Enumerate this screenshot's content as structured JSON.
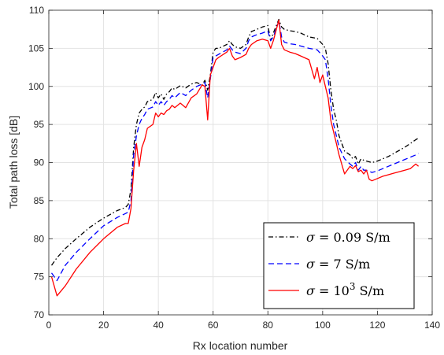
{
  "chart_data": {
    "type": "line",
    "xlabel": "Rx location number",
    "ylabel": "Total path loss [dB]",
    "xlim": [
      0,
      140
    ],
    "ylim": [
      70,
      110
    ],
    "x_ticks": [
      "0",
      "20",
      "40",
      "60",
      "80",
      "100",
      "120",
      "140"
    ],
    "y_ticks": [
      "70",
      "75",
      "80",
      "85",
      "90",
      "95",
      "100",
      "105",
      "110"
    ],
    "grid": true,
    "legend_position": "bottom-right",
    "series": [
      {
        "name": "σ = 0.09 S/m",
        "legend_symbol": "σ",
        "legend_text": " = 0.09 S/m",
        "color": "#000000",
        "style": "dashdot",
        "x": [
          1,
          3,
          6,
          10,
          15,
          20,
          25,
          28,
          29,
          30,
          31,
          32,
          33,
          34,
          35,
          36,
          38,
          39,
          40,
          41,
          42,
          43,
          44,
          45,
          46,
          48,
          50,
          52,
          54,
          56,
          57,
          58,
          59,
          60,
          61,
          62,
          65,
          66,
          67,
          68,
          70,
          72,
          73,
          74,
          76,
          78,
          80,
          81,
          82,
          84,
          85,
          86,
          88,
          90,
          92,
          95,
          98,
          100,
          101,
          102,
          103,
          104,
          105,
          106,
          108,
          110,
          111,
          112,
          113,
          114,
          115,
          116,
          118,
          120,
          122,
          124,
          126,
          128,
          130,
          132,
          134,
          135
        ],
        "values": [
          76.5,
          77.5,
          78.7,
          80.0,
          81.5,
          82.7,
          83.7,
          84.1,
          84.5,
          86.5,
          92.0,
          95.0,
          96.5,
          97.0,
          97.3,
          98.0,
          98.3,
          99.2,
          98.5,
          99.0,
          98.3,
          99.0,
          99.3,
          99.8,
          99.6,
          100.1,
          99.8,
          100.3,
          100.5,
          100.2,
          100.8,
          99.5,
          101.5,
          104.5,
          105.0,
          105.0,
          105.5,
          106.0,
          105.5,
          105.2,
          105.0,
          105.5,
          106.5,
          107.2,
          107.5,
          107.8,
          108.0,
          106.0,
          107.0,
          108.8,
          107.8,
          107.5,
          107.3,
          107.2,
          107.0,
          106.5,
          106.3,
          105.5,
          105.0,
          103.0,
          99.5,
          97.0,
          95.5,
          93.5,
          91.5,
          91.0,
          90.5,
          90.8,
          89.8,
          90.5,
          90.3,
          90.2,
          90.0,
          90.2,
          90.5,
          90.8,
          91.2,
          91.6,
          92.0,
          92.5,
          93.0,
          93.2
        ]
      },
      {
        "name": "σ = 7 S/m",
        "legend_symbol": "σ",
        "legend_text": " = 7 S/m",
        "color": "#0000ff",
        "style": "dashed",
        "x": [
          1,
          3,
          6,
          10,
          15,
          20,
          25,
          28,
          29,
          30,
          31,
          32,
          33,
          34,
          35,
          36,
          38,
          39,
          40,
          41,
          42,
          43,
          44,
          45,
          46,
          48,
          50,
          52,
          54,
          56,
          57,
          58,
          59,
          60,
          61,
          62,
          65,
          66,
          67,
          68,
          70,
          72,
          73,
          74,
          76,
          78,
          80,
          81,
          82,
          84,
          85,
          86,
          88,
          90,
          92,
          95,
          98,
          100,
          101,
          102,
          103,
          104,
          105,
          106,
          108,
          110,
          111,
          112,
          113,
          114,
          115,
          116,
          118,
          120,
          122,
          124,
          126,
          128,
          130,
          132,
          134,
          135
        ],
        "values": [
          75.5,
          74.5,
          76.5,
          78.2,
          80.0,
          81.7,
          82.8,
          83.3,
          83.5,
          85.0,
          91.0,
          93.5,
          95.0,
          95.8,
          96.3,
          97.0,
          97.3,
          98.0,
          97.5,
          98.0,
          97.5,
          98.0,
          98.3,
          98.8,
          98.5,
          99.2,
          98.8,
          99.5,
          100.0,
          100.3,
          100.5,
          98.5,
          101.0,
          103.8,
          104.0,
          104.2,
          104.8,
          105.3,
          104.8,
          104.5,
          104.3,
          105.0,
          106.0,
          106.5,
          106.8,
          107.0,
          107.3,
          106.0,
          106.5,
          108.6,
          106.5,
          105.8,
          105.6,
          105.5,
          105.3,
          105.0,
          104.8,
          104.0,
          103.5,
          101.0,
          97.5,
          95.0,
          93.5,
          92.0,
          90.5,
          89.8,
          89.5,
          90.0,
          89.0,
          89.5,
          89.0,
          89.0,
          88.7,
          88.9,
          89.2,
          89.5,
          89.8,
          90.1,
          90.4,
          90.7,
          91.0,
          91.2
        ]
      },
      {
        "name": "σ = 10³ S/m",
        "legend_symbol": "σ",
        "legend_text": " = 10",
        "legend_superscript": "3",
        "legend_suffix": " S/m",
        "color": "#ff0000",
        "style": "solid",
        "x": [
          1,
          3,
          6,
          10,
          15,
          20,
          25,
          28,
          29,
          30,
          31,
          32,
          33,
          34,
          35,
          36,
          38,
          39,
          40,
          41,
          42,
          43,
          44,
          45,
          46,
          48,
          50,
          52,
          54,
          56,
          57,
          58,
          59,
          60,
          61,
          62,
          65,
          66,
          67,
          68,
          70,
          72,
          73,
          74,
          76,
          78,
          80,
          81,
          82,
          84,
          85,
          86,
          88,
          90,
          92,
          95,
          97,
          98,
          99,
          100,
          101,
          102,
          103,
          104,
          105,
          106,
          108,
          110,
          111,
          112,
          113,
          114,
          115,
          116,
          117,
          118,
          120,
          122,
          124,
          126,
          128,
          130,
          132,
          134,
          135
        ],
        "values": [
          75.0,
          72.5,
          73.8,
          76.0,
          78.2,
          80.0,
          81.5,
          82.0,
          82.0,
          84.0,
          89.0,
          92.5,
          89.5,
          92.0,
          93.0,
          94.5,
          95.0,
          96.5,
          96.0,
          96.5,
          96.3,
          96.8,
          97.0,
          97.5,
          97.2,
          97.8,
          97.2,
          98.5,
          99.0,
          100.2,
          100.0,
          95.6,
          101.5,
          102.5,
          103.5,
          103.8,
          104.5,
          105.0,
          104.0,
          103.5,
          103.8,
          104.2,
          105.0,
          105.5,
          106.0,
          106.2,
          106.0,
          105.0,
          106.0,
          108.7,
          105.5,
          104.8,
          104.5,
          104.3,
          104.0,
          103.5,
          101.0,
          102.5,
          100.5,
          101.5,
          100.0,
          98.5,
          95.5,
          94.0,
          92.5,
          91.0,
          88.5,
          89.5,
          89.2,
          89.6,
          88.8,
          89.0,
          88.5,
          89.0,
          87.8,
          87.6,
          87.9,
          88.2,
          88.4,
          88.6,
          88.8,
          89.0,
          89.2,
          89.8,
          89.5
        ]
      }
    ]
  }
}
